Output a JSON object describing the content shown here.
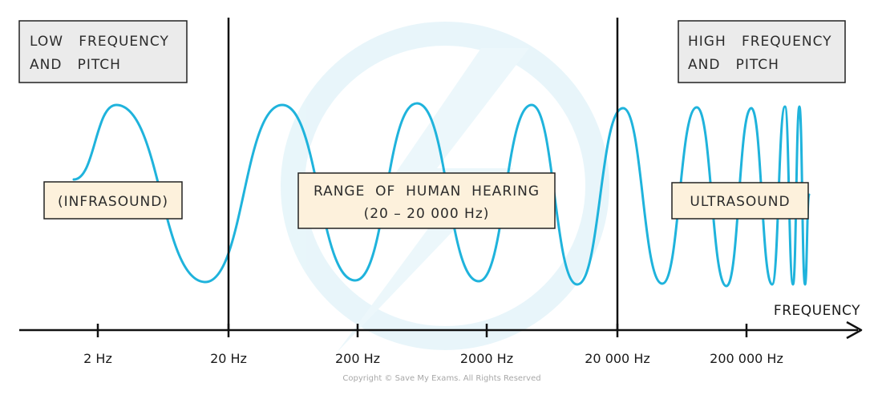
{
  "corner_labels": {
    "low": {
      "line1": "LOW   FREQUENCY",
      "line2": "AND   PITCH"
    },
    "high": {
      "line1": "HIGH   FREQUENCY",
      "line2": "AND   PITCH"
    }
  },
  "region_labels": {
    "infrasound": "(INFRASOUND)",
    "hearing_line1": "RANGE  OF  HUMAN  HEARING",
    "hearing_line2": "(20 – 20 000 Hz)",
    "ultrasound": "ULTRASOUND"
  },
  "axis": {
    "title": "FREQUENCY",
    "ticks": [
      "2 Hz",
      "20 Hz",
      "200 Hz",
      "2000 Hz",
      "20 000 Hz",
      "200 000 Hz"
    ]
  },
  "boundaries": [
    "20 Hz",
    "20 000 Hz"
  ],
  "copyright": "Copyright © Save My Exams. All Rights Reserved",
  "colors": {
    "wave": "#1fb3dc",
    "corner_box_fill": "#ebebeb",
    "label_box_fill": "#fdf1dc",
    "line": "#111111",
    "watermark": "#e3f4fa"
  }
}
